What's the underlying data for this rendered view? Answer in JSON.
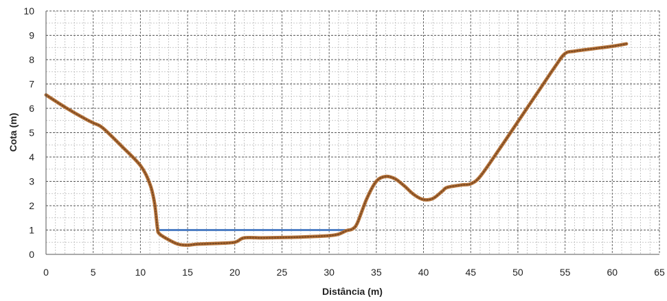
{
  "chart_data": {
    "type": "line",
    "title": "",
    "xlabel": "Distância (m)",
    "ylabel": "Cota (m)",
    "xlim": [
      0,
      65
    ],
    "ylim": [
      0,
      10
    ],
    "x_ticks": [
      0,
      5,
      10,
      15,
      20,
      25,
      30,
      35,
      40,
      45,
      50,
      55,
      60,
      65
    ],
    "y_ticks": [
      0,
      1,
      2,
      3,
      4,
      5,
      6,
      7,
      8,
      9,
      10
    ],
    "x_minor_step": 1,
    "y_minor_step": 0.5,
    "grid": true,
    "legend": "none",
    "colors": {
      "terrain": "#b5733a",
      "terrain_dots": "#6e3f1c",
      "water": "#4f7fc4",
      "grid_major": "#555555",
      "grid_minor": "#b8b8b8"
    },
    "series": [
      {
        "x": [
          0,
          2,
          4,
          5,
          6,
          8,
          10,
          11,
          11.5,
          11.8,
          12,
          13,
          14,
          15,
          16,
          18,
          20,
          21,
          23,
          26,
          28,
          30,
          31,
          31.8,
          32.5,
          33,
          34,
          35,
          36,
          37,
          38,
          39,
          40,
          41,
          42,
          42.5,
          44,
          45,
          46,
          48,
          50,
          52,
          54,
          55,
          56,
          58,
          60,
          61.5
        ],
        "y": [
          6.55,
          6.05,
          5.6,
          5.4,
          5.2,
          4.45,
          3.65,
          2.9,
          2.1,
          1.1,
          0.85,
          0.6,
          0.42,
          0.38,
          0.42,
          0.45,
          0.5,
          0.68,
          0.68,
          0.7,
          0.73,
          0.77,
          0.83,
          0.97,
          1.05,
          1.3,
          2.3,
          3.0,
          3.2,
          3.1,
          2.8,
          2.45,
          2.25,
          2.3,
          2.6,
          2.75,
          2.85,
          2.9,
          3.2,
          4.3,
          5.45,
          6.6,
          7.75,
          8.25,
          8.35,
          8.45,
          8.55,
          8.65
        ]
      },
      {
        "x": [
          12,
          32
        ],
        "y": [
          1.0,
          1.0
        ]
      }
    ]
  }
}
